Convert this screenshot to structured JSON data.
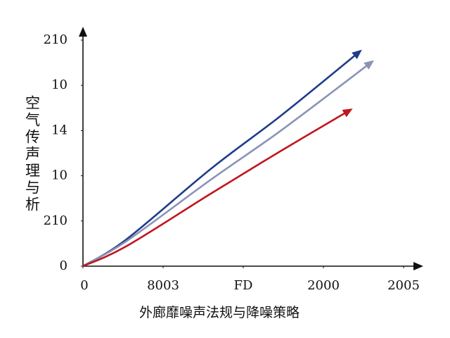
{
  "chart_data": {
    "type": "line",
    "y_axis_label": "空气传声理与析",
    "x_axis_label": "外廊靡噪声法规与降噪策略",
    "xlim": [
      0,
      4
    ],
    "xticks": [
      0,
      {
        "value": 1,
        "label": "8003"
      },
      {
        "value": 2,
        "label": "FD"
      },
      {
        "value": 3,
        "label": "2000"
      },
      {
        "value": 4,
        "label": "2005"
      }
    ],
    "ylim": [
      0,
      5
    ],
    "yticks": [
      0,
      {
        "value": 1,
        "label": "210"
      },
      {
        "value": 2,
        "label": "10"
      },
      {
        "value": 3,
        "label": "14"
      },
      {
        "value": 4,
        "label": "10"
      },
      {
        "value": 5,
        "label": "210"
      }
    ],
    "grid": false,
    "series": [
      {
        "color": "#1e3c8c",
        "x": [
          0,
          0.54,
          1.6,
          2.47,
          3.44
        ],
        "values": [
          0,
          0.59,
          2.16,
          3.33,
          4.73
        ]
      },
      {
        "color": "#8a93b6",
        "x": [
          0,
          0.54,
          1.6,
          2.47,
          3.59
        ],
        "values": [
          0,
          0.55,
          1.92,
          3.0,
          4.5
        ]
      },
      {
        "color": "#c0161e",
        "x": [
          0,
          0.54,
          1.6,
          2.47,
          3.32
        ],
        "values": [
          0,
          0.44,
          1.61,
          2.55,
          3.44
        ]
      }
    ]
  }
}
